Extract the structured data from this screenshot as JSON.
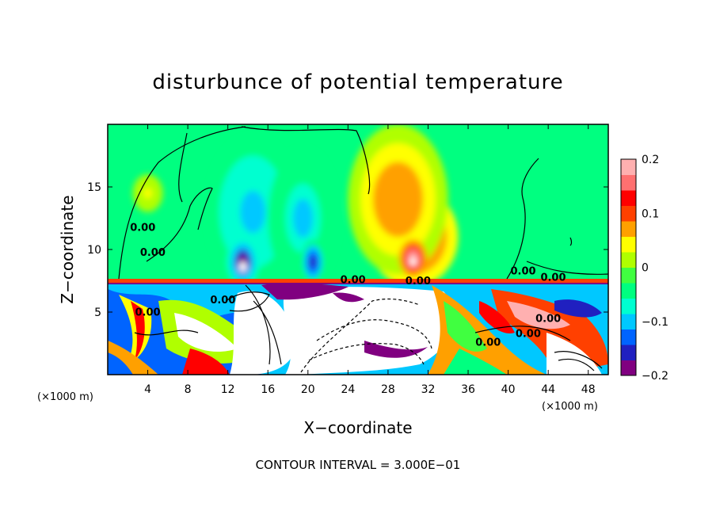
{
  "chart_data": {
    "type": "heatmap",
    "title": "disturbunce of potential temperature",
    "xlabel": "X−coordinate",
    "ylabel": "Z−coordinate",
    "x_unit": "(×1000 m)",
    "x_unit_secondary": "(×1000 m)",
    "xlim": [
      0,
      50
    ],
    "ylim": [
      0,
      20
    ],
    "x_ticks": [
      4,
      8,
      12,
      16,
      20,
      24,
      28,
      32,
      36,
      40,
      44,
      48
    ],
    "y_ticks": [
      5,
      10,
      15
    ],
    "colorbar": {
      "min": -0.2,
      "max": 0.2,
      "tick_values": [
        0.2,
        0.1,
        0,
        -0.1,
        -0.2
      ],
      "tick_labels": [
        "0.2",
        "0.1",
        "0",
        "−0.1",
        "−0.2"
      ],
      "colors": [
        "#800080",
        "#2020c0",
        "#0064ff",
        "#00c8ff",
        "#00ffd0",
        "#00ff80",
        "#40ff40",
        "#b0ff00",
        "#ffff00",
        "#ffa000",
        "#ff4000",
        "#ff0000",
        "#ff7070",
        "#ffb0b0"
      ]
    },
    "features": [
      {
        "x": 14.5,
        "z": 13.0,
        "value": -0.1,
        "rx": 4.5,
        "rz": 6.0
      },
      {
        "x": 19.5,
        "z": 12.5,
        "value": -0.09,
        "rx": 3.5,
        "rz": 5.5
      },
      {
        "x": 13.5,
        "z": 9.0,
        "value": -0.19,
        "rx": 1.6,
        "rz": 2.0
      },
      {
        "x": 20.5,
        "z": 9.0,
        "value": -0.15,
        "rx": 1.2,
        "rz": 1.8
      },
      {
        "x": 30.5,
        "z": 11.0,
        "value": 0.14,
        "rx": 4.5,
        "rz": 4.0
      },
      {
        "x": 29.0,
        "z": 14.0,
        "value": 0.08,
        "rx": 5.0,
        "rz": 6.0
      },
      {
        "x": 30.5,
        "z": 9.3,
        "value": 0.19,
        "rx": 1.4,
        "rz": 1.5
      },
      {
        "x": 4.0,
        "z": 14.5,
        "value": 0.03,
        "rx": 1.5,
        "rz": 1.5
      }
    ],
    "contour_labels": [
      {
        "text": "0.00",
        "x": 3.5,
        "z": 11.5
      },
      {
        "text": "0.00",
        "x": 4.5,
        "z": 9.5
      },
      {
        "text": "0.00",
        "x": 24.5,
        "z": 7.3
      },
      {
        "text": "0.00",
        "x": 31.0,
        "z": 7.2
      },
      {
        "text": "0.00",
        "x": 41.5,
        "z": 8.0
      },
      {
        "text": "0.00",
        "x": 44.5,
        "z": 7.5
      },
      {
        "text": "0.00",
        "x": 38.0,
        "z": 2.3
      },
      {
        "text": "0.00",
        "x": 42.0,
        "z": 3.0
      },
      {
        "text": "0.00",
        "x": 44.0,
        "z": 4.2
      },
      {
        "text": "0.00",
        "x": 11.5,
        "z": 5.7
      },
      {
        "text": "0.00",
        "x": 4.0,
        "z": 4.7
      }
    ],
    "contour_interval": "CONTOUR INTERVAL = 3.000E−01"
  }
}
